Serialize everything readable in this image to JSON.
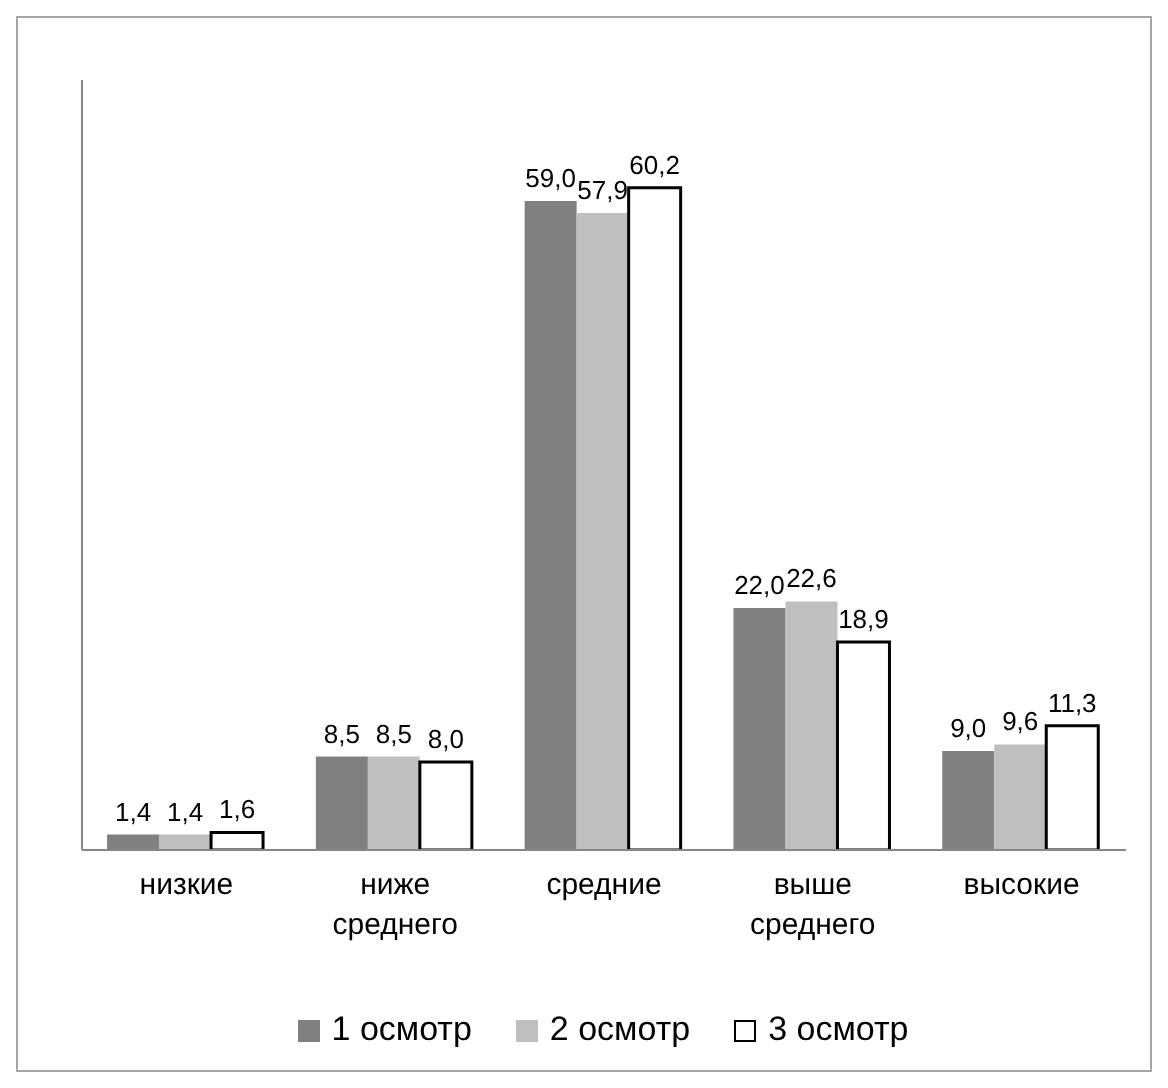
{
  "chart_data": {
    "type": "bar",
    "categories": [
      "низкие",
      "ниже среднего",
      "средние",
      "выше среднего",
      "высокие"
    ],
    "series": [
      {
        "name": "1 осмотр",
        "color": "#808080",
        "values": [
          1.4,
          8.5,
          59.0,
          22.0,
          9.0
        ],
        "value_labels": [
          "1,4",
          "8,5",
          "59,0",
          "22,0",
          "9,0"
        ]
      },
      {
        "name": "2 осмотр",
        "color": "#bfbfbf",
        "values": [
          1.4,
          8.5,
          57.9,
          22.6,
          9.6
        ],
        "value_labels": [
          "1,4",
          "8,5",
          "57,9",
          "22,6",
          "9,6"
        ]
      },
      {
        "name": "3 осмотр",
        "color": "#ffffff",
        "values": [
          1.6,
          8.0,
          60.2,
          18.9,
          11.3
        ],
        "value_labels": [
          "1,6",
          "8,0",
          "60,2",
          "18,9",
          "11,3"
        ]
      }
    ],
    "ylim": [
      0,
      70
    ],
    "tick_labels": "x",
    "legend": "bottom"
  }
}
